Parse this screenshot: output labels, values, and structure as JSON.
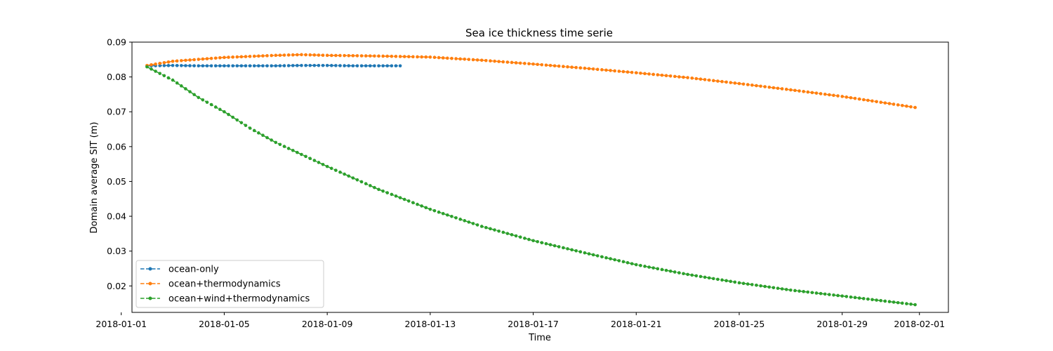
{
  "chart_data": {
    "type": "line",
    "title": "Sea ice thickness time serie",
    "xlabel": "Time",
    "ylabel": "Domain average SIT (m)",
    "x_axis_type": "date",
    "xlim": [
      "2018-01-01T10:00",
      "2018-02-02T03:00"
    ],
    "ylim": [
      0.0124,
      0.09
    ],
    "x_ticks": [
      "2018-01-01",
      "2018-01-05",
      "2018-01-09",
      "2018-01-13",
      "2018-01-17",
      "2018-01-21",
      "2018-01-25",
      "2018-01-29",
      "2018-02-01"
    ],
    "y_ticks": [
      0.02,
      0.03,
      0.04,
      0.05,
      0.06,
      0.07,
      0.08,
      0.09
    ],
    "y_tick_labels": [
      "0.02",
      "0.03",
      "0.04",
      "0.05",
      "0.06",
      "0.07",
      "0.08",
      "0.09"
    ],
    "grid": false,
    "legend": "lower-left",
    "line_style": "dashed",
    "marker": "circle",
    "series": [
      {
        "name": "ocean-only",
        "color": "#1f77b4",
        "x_start": "2018-01-02T00:00",
        "x_end": "2018-01-11T23:00",
        "x": [
          "2018-01-02",
          "2018-01-03",
          "2018-01-04",
          "2018-01-05",
          "2018-01-06",
          "2018-01-07",
          "2018-01-08",
          "2018-01-09",
          "2018-01-10",
          "2018-01-11",
          "2018-01-11T23:00"
        ],
        "values": [
          0.0832,
          0.0833,
          0.0832,
          0.0832,
          0.0832,
          0.0832,
          0.0833,
          0.0833,
          0.0832,
          0.0832,
          0.0832
        ]
      },
      {
        "name": "ocean+thermodynamics",
        "color": "#ff7f0e",
        "x_start": "2018-01-02T00:00",
        "x_end": "2018-01-31T23:00",
        "x": [
          "2018-01-02",
          "2018-01-03",
          "2018-01-05",
          "2018-01-07",
          "2018-01-08",
          "2018-01-09",
          "2018-01-11",
          "2018-01-13",
          "2018-01-15",
          "2018-01-17",
          "2018-01-19",
          "2018-01-21",
          "2018-01-23",
          "2018-01-25",
          "2018-01-27",
          "2018-01-29",
          "2018-01-31T23:00"
        ],
        "values": [
          0.0833,
          0.0845,
          0.0856,
          0.0862,
          0.0864,
          0.0862,
          0.086,
          0.0857,
          0.0848,
          0.0837,
          0.0825,
          0.0812,
          0.0798,
          0.0781,
          0.0763,
          0.0744,
          0.0711
        ]
      },
      {
        "name": "ocean+wind+thermodynamics",
        "color": "#2ca02c",
        "x_start": "2018-01-02T00:00",
        "x_end": "2018-01-31T23:00",
        "x": [
          "2018-01-02",
          "2018-01-03",
          "2018-01-04",
          "2018-01-05",
          "2018-01-06",
          "2018-01-07",
          "2018-01-09",
          "2018-01-11",
          "2018-01-13",
          "2018-01-15",
          "2018-01-17",
          "2018-01-19",
          "2018-01-21",
          "2018-01-23",
          "2018-01-25",
          "2018-01-27",
          "2018-01-29",
          "2018-01-31T23:00"
        ],
        "values": [
          0.0829,
          0.0791,
          0.0741,
          0.07,
          0.0653,
          0.0612,
          0.0543,
          0.0477,
          0.042,
          0.0371,
          0.033,
          0.0295,
          0.0261,
          0.0233,
          0.0209,
          0.0188,
          0.0171,
          0.0145
        ]
      }
    ]
  }
}
